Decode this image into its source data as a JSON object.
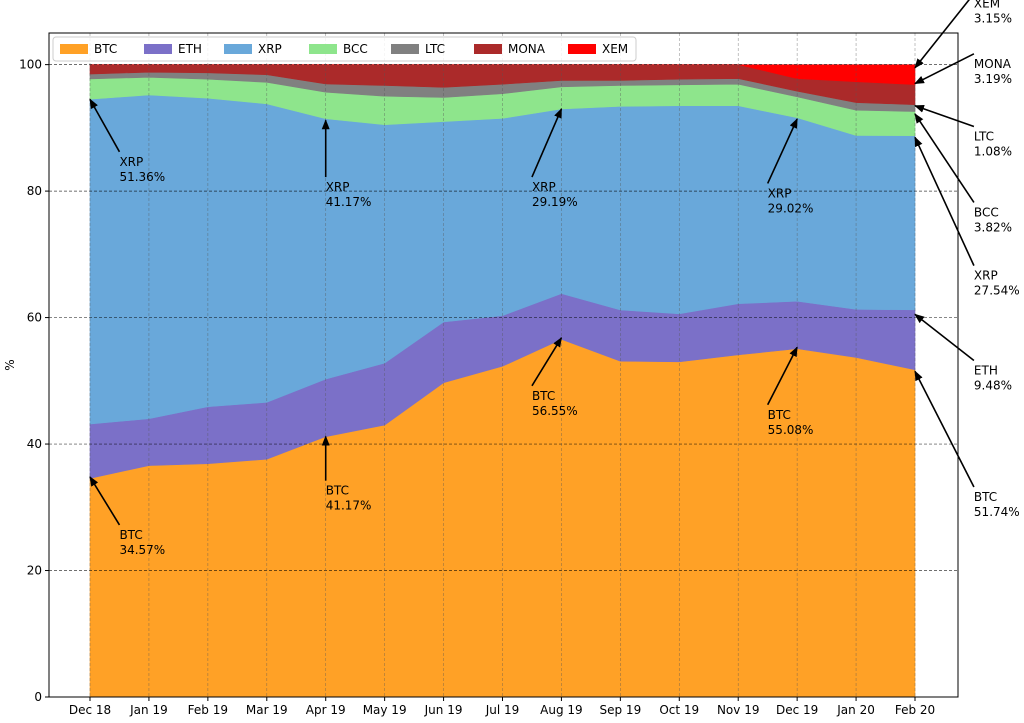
{
  "chart_data": {
    "type": "area",
    "stacked": true,
    "ylabel": "%",
    "ylim": [
      0,
      105
    ],
    "yticks": [
      0,
      20,
      40,
      60,
      80,
      100
    ],
    "grid": true,
    "legend_position": "top-left",
    "categories": [
      "Dec 18",
      "Jan 19",
      "Feb 19",
      "Mar 19",
      "Apr 19",
      "May 19",
      "Jun 19",
      "Jul 19",
      "Aug 19",
      "Sep 19",
      "Oct 19",
      "Nov 19",
      "Dec 19",
      "Jan 20",
      "Feb 20"
    ],
    "series": [
      {
        "name": "BTC",
        "color": "#ffa126",
        "values": [
          34.57,
          36.6,
          36.9,
          37.6,
          41.17,
          43.0,
          49.7,
          52.3,
          56.55,
          53.1,
          53.0,
          54.1,
          55.08,
          53.7,
          51.74
        ]
      },
      {
        "name": "ETH",
        "color": "#7b70c8",
        "values": [
          8.6,
          7.4,
          9.0,
          9.0,
          9.1,
          9.8,
          9.6,
          8.0,
          7.25,
          8.1,
          7.6,
          8.1,
          7.5,
          7.6,
          9.48
        ]
      },
      {
        "name": "XRP",
        "color": "#69a8da",
        "values": [
          51.36,
          51.2,
          48.8,
          47.2,
          41.17,
          37.7,
          31.7,
          31.2,
          29.19,
          32.2,
          32.9,
          31.3,
          29.02,
          27.5,
          27.54
        ]
      },
      {
        "name": "BCC",
        "color": "#8ee58c",
        "values": [
          3.2,
          2.8,
          3.0,
          3.4,
          4.2,
          4.5,
          3.8,
          3.9,
          3.5,
          3.3,
          3.3,
          3.4,
          3.3,
          4.0,
          3.82
        ]
      },
      {
        "name": "LTC",
        "color": "#808080",
        "values": [
          0.77,
          0.8,
          1.0,
          1.2,
          1.3,
          1.7,
          1.6,
          1.5,
          1.0,
          0.8,
          0.9,
          0.9,
          0.9,
          1.2,
          1.08
        ]
      },
      {
        "name": "MONA",
        "color": "#ab2a2a",
        "values": [
          1.5,
          1.2,
          1.3,
          1.6,
          3.05,
          3.3,
          3.6,
          3.1,
          2.51,
          2.5,
          2.3,
          2.2,
          2.0,
          3.3,
          3.19
        ]
      },
      {
        "name": "XEM",
        "color": "#ff0000",
        "values": [
          0,
          0,
          0,
          0,
          0,
          0,
          0,
          0,
          0,
          0,
          0,
          0,
          2.2,
          2.7,
          3.15
        ]
      }
    ],
    "annotations": [
      {
        "series": "XRP",
        "label": "XRP",
        "value": "51.36%",
        "cat": 0,
        "y": 94.5,
        "text_cat": 0.5,
        "text_y": 84
      },
      {
        "series": "BTC",
        "label": "BTC",
        "value": "34.57%",
        "cat": 0,
        "y": 34.8,
        "text_cat": 0.5,
        "text_y": 25
      },
      {
        "series": "XRP",
        "label": "XRP",
        "value": "41.17%",
        "cat": 4,
        "y": 91.2,
        "text_cat": 4.0,
        "text_y": 80
      },
      {
        "series": "BTC",
        "label": "BTC",
        "value": "41.17%",
        "cat": 4,
        "y": 41.2,
        "text_cat": 4.0,
        "text_y": 32
      },
      {
        "series": "XRP",
        "label": "XRP",
        "value": "29.19%",
        "cat": 8,
        "y": 93.0,
        "text_cat": 7.5,
        "text_y": 80
      },
      {
        "series": "BTC",
        "label": "BTC",
        "value": "56.55%",
        "cat": 8,
        "y": 56.8,
        "text_cat": 7.5,
        "text_y": 47
      },
      {
        "series": "XRP",
        "label": "XRP",
        "value": "29.02%",
        "cat": 12,
        "y": 91.4,
        "text_cat": 11.5,
        "text_y": 79
      },
      {
        "series": "BTC",
        "label": "BTC",
        "value": "55.08%",
        "cat": 12,
        "y": 55.3,
        "text_cat": 11.5,
        "text_y": 44
      },
      {
        "series": "XEM",
        "label": "XEM",
        "value": "3.15%",
        "cat": 14,
        "y": 99.5,
        "text_cat": 15.0,
        "text_y": 109
      },
      {
        "series": "MONA",
        "label": "MONA",
        "value": "3.19%",
        "cat": 14,
        "y": 97.0,
        "text_cat": 15.0,
        "text_y": 99.5
      },
      {
        "series": "LTC",
        "label": "LTC",
        "value": "1.08%",
        "cat": 14,
        "y": 93.5,
        "text_cat": 15.0,
        "text_y": 88
      },
      {
        "series": "BCC",
        "label": "BCC",
        "value": "3.82%",
        "cat": 14,
        "y": 92.2,
        "text_cat": 15.0,
        "text_y": 76
      },
      {
        "series": "XRP",
        "label": "XRP",
        "value": "27.54%",
        "cat": 14,
        "y": 88.5,
        "text_cat": 15.0,
        "text_y": 66
      },
      {
        "series": "ETH",
        "label": "ETH",
        "value": "9.48%",
        "cat": 14,
        "y": 60.5,
        "text_cat": 15.0,
        "text_y": 51
      },
      {
        "series": "BTC",
        "label": "BTC",
        "value": "51.74%",
        "cat": 14,
        "y": 51.5,
        "text_cat": 15.0,
        "text_y": 31
      }
    ]
  }
}
